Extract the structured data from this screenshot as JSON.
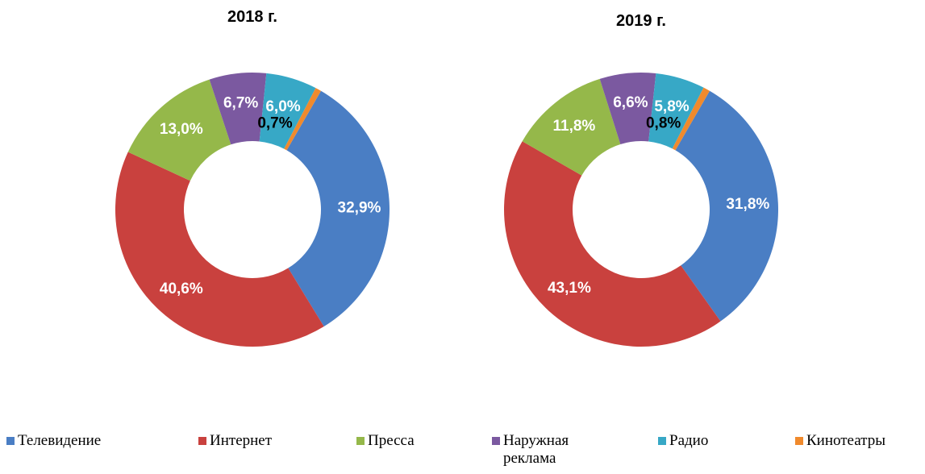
{
  "chart_data": [
    {
      "type": "donut",
      "title": "2018 г.",
      "categories": [
        "Телевидение",
        "Интернет",
        "Пресса",
        "Наружная реклама",
        "Радио",
        "Кинотеатры"
      ],
      "values": [
        32.9,
        40.6,
        13.0,
        6.7,
        6.0,
        0.7
      ],
      "value_labels": [
        "32,9%",
        "40,6%",
        "13,0%",
        "6,7%",
        "6,0%",
        "0,7%"
      ],
      "colors": [
        "#4a7ec4",
        "#c9413e",
        "#95b84a",
        "#7b59a0",
        "#37a8c6",
        "#f08a2c"
      ],
      "legend": "bottom"
    },
    {
      "type": "donut",
      "title": "2019 г.",
      "categories": [
        "Телевидение",
        "Интернет",
        "Пресса",
        "Наружная реклама",
        "Радио",
        "Кинотеатры"
      ],
      "values": [
        31.8,
        43.1,
        11.8,
        6.6,
        5.8,
        0.8
      ],
      "value_labels": [
        "31,8%",
        "43,1%",
        "11,8%",
        "6,6%",
        "5,8%",
        "0,8%"
      ],
      "colors": [
        "#4a7ec4",
        "#c9413e",
        "#95b84a",
        "#7b59a0",
        "#37a8c6",
        "#f08a2c"
      ],
      "legend": "bottom"
    }
  ]
}
